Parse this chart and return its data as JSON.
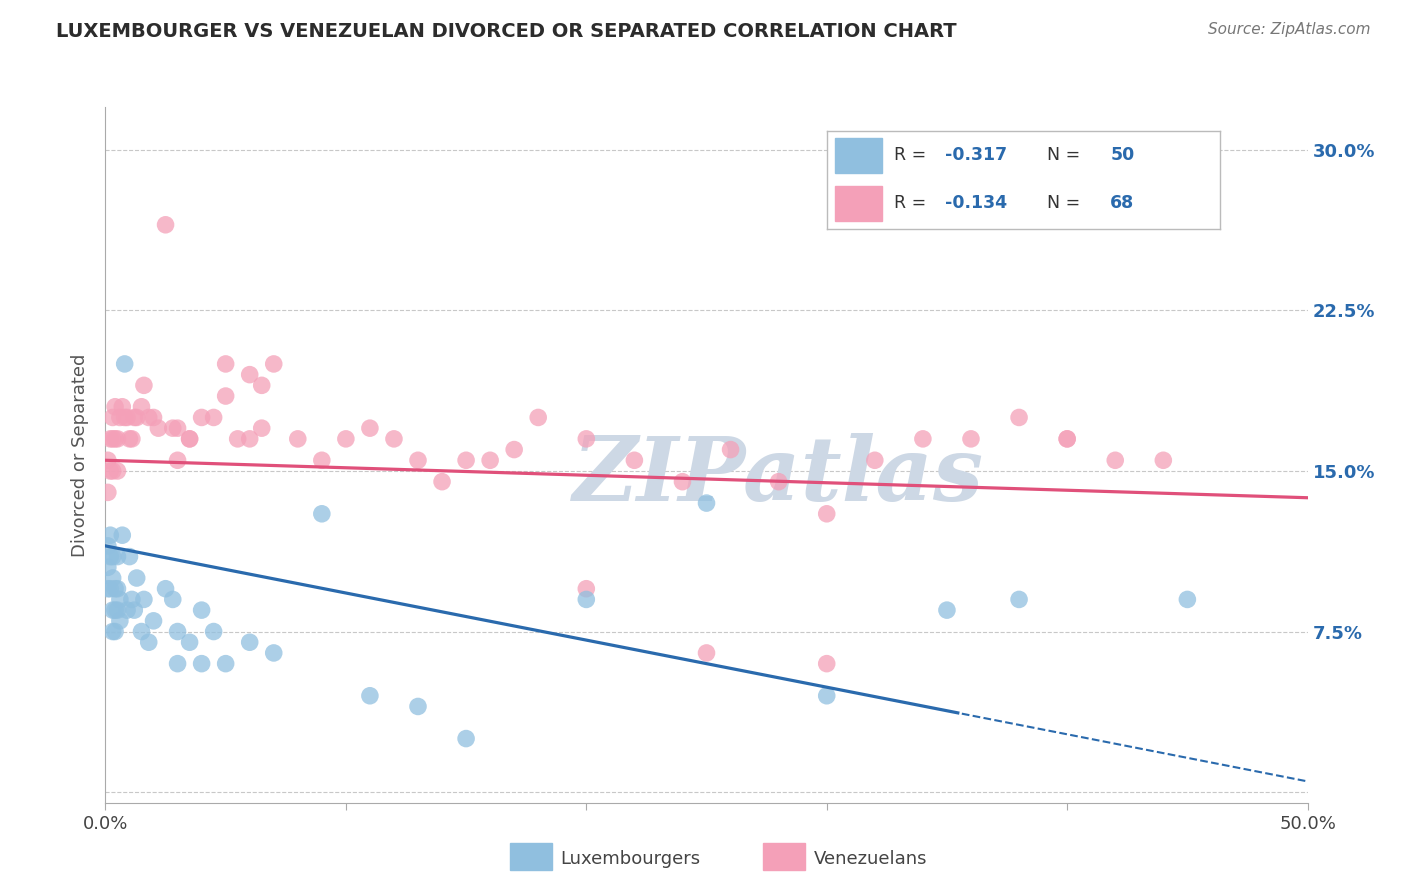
{
  "title": "LUXEMBOURGER VS VENEZUELAN DIVORCED OR SEPARATED CORRELATION CHART",
  "source": "Source: ZipAtlas.com",
  "ylabel": "Divorced or Separated",
  "xlim": [
    0.0,
    0.5
  ],
  "ylim": [
    -0.005,
    0.32
  ],
  "ytick_positions": [
    0.0,
    0.075,
    0.15,
    0.225,
    0.3
  ],
  "ytick_labels_right": [
    "",
    "7.5%",
    "15.0%",
    "22.5%",
    "30.0%"
  ],
  "grid_color": "#c8c8c8",
  "bg_color": "#ffffff",
  "watermark": "ZIPatlas",
  "watermark_color": "#cdd8e5",
  "blue_color": "#90bfdf",
  "blue_line_color": "#2a6aad",
  "pink_color": "#f4a0b8",
  "pink_line_color": "#e0507a",
  "blue_R": "-0.317",
  "blue_N": "50",
  "pink_R": "-0.134",
  "pink_N": "68",
  "title_color": "#2c2c2c",
  "right_tick_color": "#2a6aad",
  "lux_x": [
    0.001,
    0.001,
    0.001,
    0.002,
    0.002,
    0.002,
    0.003,
    0.003,
    0.003,
    0.003,
    0.004,
    0.004,
    0.004,
    0.005,
    0.005,
    0.005,
    0.006,
    0.006,
    0.007,
    0.008,
    0.009,
    0.01,
    0.011,
    0.012,
    0.013,
    0.015,
    0.016,
    0.018,
    0.02,
    0.025,
    0.028,
    0.03,
    0.035,
    0.04,
    0.045,
    0.05,
    0.06,
    0.07,
    0.09,
    0.11,
    0.13,
    0.15,
    0.2,
    0.25,
    0.3,
    0.35,
    0.03,
    0.04,
    0.38,
    0.45
  ],
  "lux_y": [
    0.115,
    0.105,
    0.095,
    0.12,
    0.11,
    0.095,
    0.11,
    0.1,
    0.085,
    0.075,
    0.095,
    0.085,
    0.075,
    0.11,
    0.095,
    0.085,
    0.09,
    0.08,
    0.12,
    0.2,
    0.085,
    0.11,
    0.09,
    0.085,
    0.1,
    0.075,
    0.09,
    0.07,
    0.08,
    0.095,
    0.09,
    0.075,
    0.07,
    0.085,
    0.075,
    0.06,
    0.07,
    0.065,
    0.13,
    0.045,
    0.04,
    0.025,
    0.09,
    0.135,
    0.045,
    0.085,
    0.06,
    0.06,
    0.09,
    0.09
  ],
  "ven_x": [
    0.001,
    0.001,
    0.002,
    0.002,
    0.003,
    0.003,
    0.003,
    0.004,
    0.004,
    0.005,
    0.005,
    0.006,
    0.007,
    0.008,
    0.009,
    0.01,
    0.011,
    0.012,
    0.013,
    0.015,
    0.016,
    0.018,
    0.02,
    0.022,
    0.025,
    0.028,
    0.03,
    0.035,
    0.04,
    0.045,
    0.05,
    0.055,
    0.06,
    0.065,
    0.07,
    0.08,
    0.09,
    0.1,
    0.11,
    0.12,
    0.13,
    0.14,
    0.15,
    0.16,
    0.17,
    0.18,
    0.2,
    0.22,
    0.24,
    0.26,
    0.28,
    0.3,
    0.32,
    0.34,
    0.36,
    0.38,
    0.4,
    0.03,
    0.035,
    0.2,
    0.25,
    0.3,
    0.05,
    0.06,
    0.065,
    0.4,
    0.42,
    0.44
  ],
  "ven_y": [
    0.155,
    0.14,
    0.165,
    0.15,
    0.175,
    0.165,
    0.15,
    0.18,
    0.165,
    0.165,
    0.15,
    0.175,
    0.18,
    0.175,
    0.175,
    0.165,
    0.165,
    0.175,
    0.175,
    0.18,
    0.19,
    0.175,
    0.175,
    0.17,
    0.265,
    0.17,
    0.17,
    0.165,
    0.175,
    0.175,
    0.185,
    0.165,
    0.165,
    0.17,
    0.2,
    0.165,
    0.155,
    0.165,
    0.17,
    0.165,
    0.155,
    0.145,
    0.155,
    0.155,
    0.16,
    0.175,
    0.165,
    0.155,
    0.145,
    0.16,
    0.145,
    0.13,
    0.155,
    0.165,
    0.165,
    0.175,
    0.165,
    0.155,
    0.165,
    0.095,
    0.065,
    0.06,
    0.2,
    0.195,
    0.19,
    0.165,
    0.155,
    0.155
  ]
}
